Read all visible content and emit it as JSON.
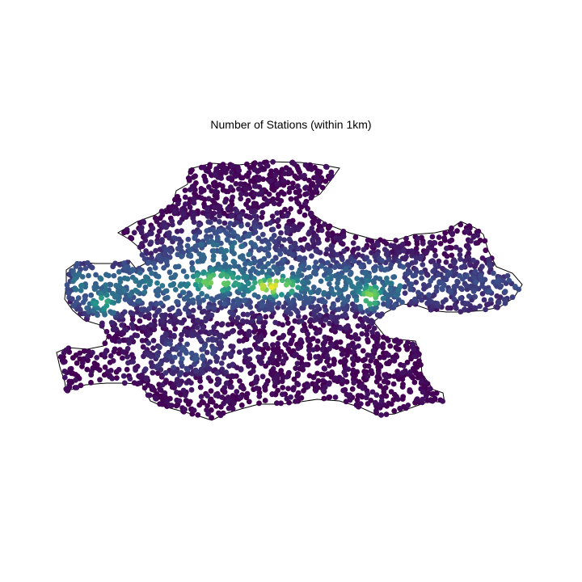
{
  "figure": {
    "title": "Number of Stations (within 1km)"
  },
  "chart_data": {
    "type": "scatter",
    "title": "Number of Stations (within 1km)",
    "xlabel": "",
    "ylabel": "",
    "axes_visible": false,
    "grid": false,
    "legend": "none",
    "colormap": "viridis",
    "colormap_stops": [
      "#440154",
      "#3b528b",
      "#21918c",
      "#5ec962",
      "#fde725"
    ],
    "boundary_stroke": "#000000",
    "marker_color_low": "#440154",
    "density_hotspots": [
      {
        "name": "west-central corridor",
        "level": 0.78
      },
      {
        "name": "central corridor",
        "level": 0.95
      },
      {
        "name": "east cluster",
        "level": 0.82
      },
      {
        "name": "western cluster",
        "level": 0.55
      }
    ]
  }
}
